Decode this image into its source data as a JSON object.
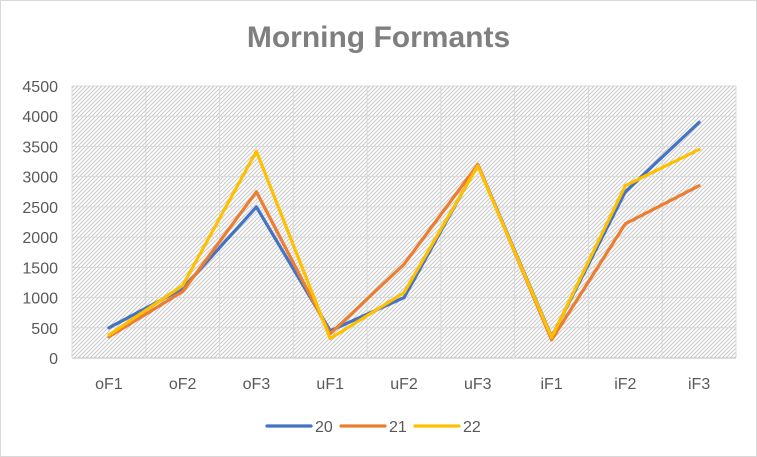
{
  "chart_data": {
    "type": "line",
    "title": "Morning Formants",
    "xlabel": "",
    "ylabel": "",
    "categories": [
      "oF1",
      "oF2",
      "oF3",
      "uF1",
      "uF2",
      "uF3",
      "iF1",
      "iF2",
      "iF3"
    ],
    "ylim": [
      0,
      4500
    ],
    "yticks": [
      0,
      500,
      1000,
      1500,
      2000,
      2500,
      3000,
      3500,
      4000,
      4500
    ],
    "grid": true,
    "legend_position": "bottom",
    "series": [
      {
        "name": "20",
        "color": "#4472c4",
        "values": [
          500,
          1150,
          2500,
          450,
          1000,
          3200,
          350,
          2750,
          3900
        ]
      },
      {
        "name": "21",
        "color": "#ed7d31",
        "values": [
          350,
          1100,
          2750,
          400,
          1550,
          3200,
          300,
          2220,
          2850
        ]
      },
      {
        "name": "22",
        "color": "#ffc000",
        "values": [
          380,
          1200,
          3420,
          320,
          1080,
          3180,
          340,
          2850,
          3450
        ]
      }
    ]
  }
}
